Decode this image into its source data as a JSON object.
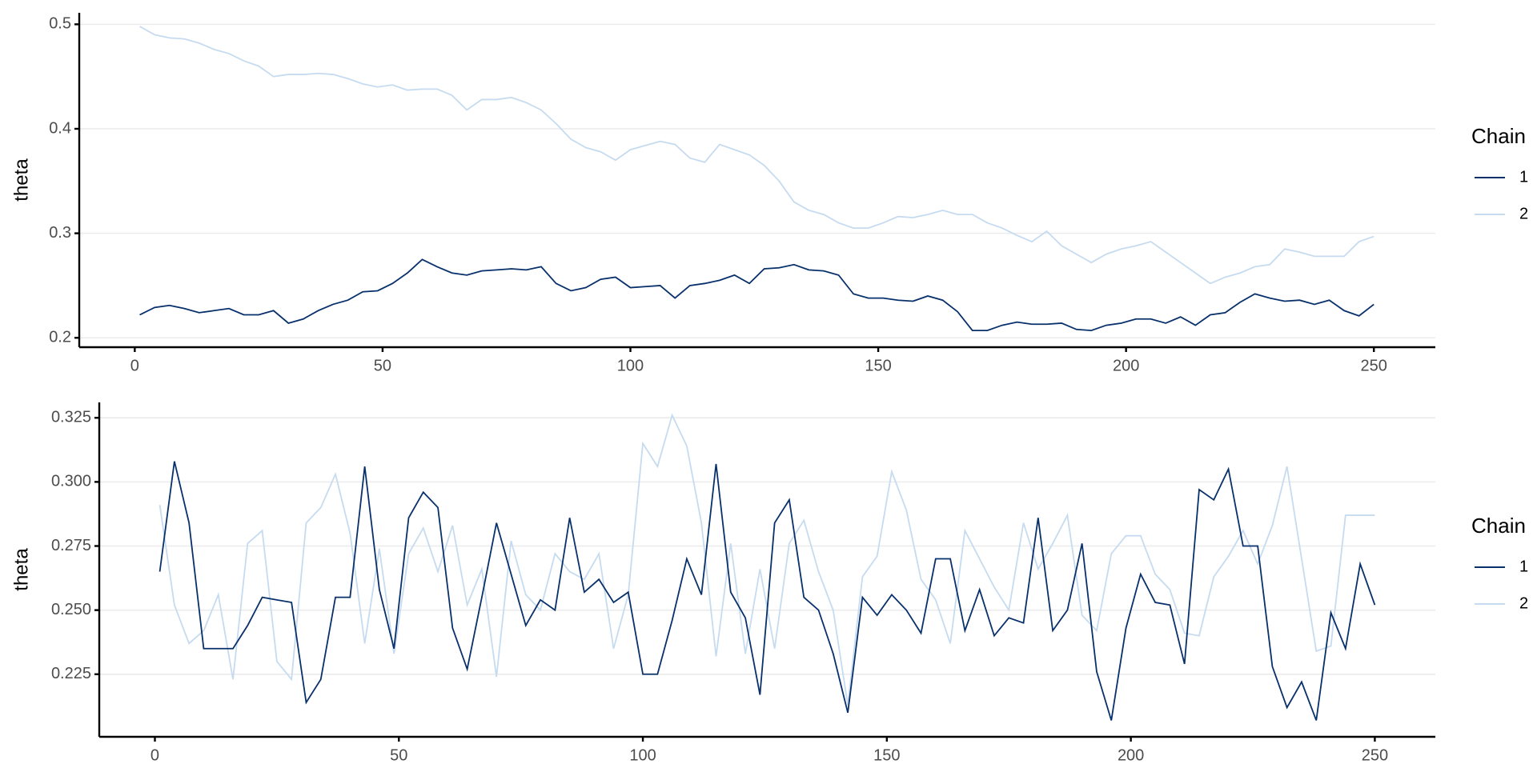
{
  "chart_data": [
    {
      "type": "line",
      "y_label": "theta",
      "legend_title": "Chain",
      "x": [
        1,
        4,
        7,
        10,
        13,
        16,
        19,
        22,
        25,
        28,
        31,
        34,
        37,
        40,
        43,
        46,
        49,
        52,
        55,
        58,
        61,
        64,
        67,
        70,
        73,
        76,
        79,
        82,
        85,
        88,
        91,
        94,
        97,
        100,
        103,
        106,
        109,
        112,
        115,
        118,
        121,
        124,
        127,
        130,
        133,
        136,
        139,
        142,
        145,
        148,
        151,
        154,
        157,
        160,
        163,
        166,
        169,
        172,
        175,
        178,
        181,
        184,
        187,
        190,
        193,
        196,
        199,
        202,
        205,
        208,
        211,
        214,
        217,
        220,
        223,
        226,
        229,
        232,
        235,
        238,
        241,
        244,
        247,
        250
      ],
      "series": [
        {
          "name": "1",
          "color": "#08306b",
          "values": [
            0.222,
            0.229,
            0.231,
            0.228,
            0.224,
            0.226,
            0.228,
            0.222,
            0.222,
            0.226,
            0.214,
            0.218,
            0.226,
            0.232,
            0.236,
            0.244,
            0.245,
            0.252,
            0.262,
            0.275,
            0.268,
            0.262,
            0.26,
            0.264,
            0.265,
            0.266,
            0.265,
            0.268,
            0.252,
            0.245,
            0.248,
            0.256,
            0.258,
            0.248,
            0.249,
            0.25,
            0.238,
            0.25,
            0.252,
            0.255,
            0.26,
            0.252,
            0.266,
            0.267,
            0.27,
            0.265,
            0.264,
            0.26,
            0.242,
            0.238,
            0.238,
            0.236,
            0.235,
            0.24,
            0.236,
            0.225,
            0.207,
            0.207,
            0.212,
            0.215,
            0.213,
            0.213,
            0.214,
            0.208,
            0.207,
            0.212,
            0.214,
            0.218,
            0.218,
            0.214,
            0.22,
            0.212,
            0.222,
            0.224,
            0.234,
            0.242,
            0.238,
            0.235,
            0.236,
            0.232,
            0.236,
            0.226,
            0.221,
            0.232
          ]
        },
        {
          "name": "2",
          "color": "#c6dbef",
          "values": [
            0.498,
            0.49,
            0.487,
            0.486,
            0.482,
            0.476,
            0.472,
            0.465,
            0.46,
            0.45,
            0.452,
            0.452,
            0.453,
            0.452,
            0.448,
            0.443,
            0.44,
            0.442,
            0.437,
            0.438,
            0.438,
            0.432,
            0.418,
            0.428,
            0.428,
            0.43,
            0.425,
            0.418,
            0.405,
            0.39,
            0.382,
            0.378,
            0.37,
            0.38,
            0.384,
            0.388,
            0.385,
            0.372,
            0.368,
            0.385,
            0.38,
            0.375,
            0.365,
            0.35,
            0.33,
            0.322,
            0.318,
            0.31,
            0.305,
            0.305,
            0.31,
            0.316,
            0.315,
            0.318,
            0.322,
            0.318,
            0.318,
            0.31,
            0.305,
            0.298,
            0.292,
            0.302,
            0.288,
            0.28,
            0.272,
            0.28,
            0.285,
            0.288,
            0.292,
            0.282,
            0.272,
            0.262,
            0.252,
            0.258,
            0.262,
            0.268,
            0.27,
            0.285,
            0.282,
            0.278,
            0.278,
            0.278,
            0.292,
            0.297
          ]
        }
      ],
      "xlim": [
        -11.2,
        262.4
      ],
      "xticks": [
        0,
        50,
        100,
        150,
        200,
        250
      ],
      "ylim": [
        0.191,
        0.511
      ],
      "yticks": [
        0.2,
        0.3,
        0.4,
        0.5
      ],
      "grid": true
    },
    {
      "type": "line",
      "y_label": "theta",
      "legend_title": "Chain",
      "x": [
        1,
        4,
        7,
        10,
        13,
        16,
        19,
        22,
        25,
        28,
        31,
        34,
        37,
        40,
        43,
        46,
        49,
        52,
        55,
        58,
        61,
        64,
        67,
        70,
        73,
        76,
        79,
        82,
        85,
        88,
        91,
        94,
        97,
        100,
        103,
        106,
        109,
        112,
        115,
        118,
        121,
        124,
        127,
        130,
        133,
        136,
        139,
        142,
        145,
        148,
        151,
        154,
        157,
        160,
        163,
        166,
        169,
        172,
        175,
        178,
        181,
        184,
        187,
        190,
        193,
        196,
        199,
        202,
        205,
        208,
        211,
        214,
        217,
        220,
        223,
        226,
        229,
        232,
        235,
        238,
        241,
        244,
        247,
        250
      ],
      "series": [
        {
          "name": "1",
          "color": "#08306b",
          "values": [
            0.265,
            0.308,
            0.284,
            0.235,
            0.235,
            0.235,
            0.244,
            0.255,
            0.254,
            0.253,
            0.214,
            0.223,
            0.255,
            0.255,
            0.306,
            0.258,
            0.235,
            0.286,
            0.296,
            0.29,
            0.243,
            0.227,
            0.255,
            0.284,
            0.264,
            0.244,
            0.254,
            0.25,
            0.286,
            0.257,
            0.262,
            0.253,
            0.257,
            0.225,
            0.225,
            0.246,
            0.27,
            0.256,
            0.307,
            0.257,
            0.247,
            0.217,
            0.284,
            0.293,
            0.255,
            0.25,
            0.233,
            0.21,
            0.255,
            0.248,
            0.256,
            0.25,
            0.241,
            0.27,
            0.27,
            0.242,
            0.258,
            0.24,
            0.247,
            0.245,
            0.286,
            0.242,
            0.25,
            0.276,
            0.226,
            0.207,
            0.243,
            0.264,
            0.253,
            0.252,
            0.229,
            0.297,
            0.293,
            0.305,
            0.275,
            0.275,
            0.228,
            0.212,
            0.222,
            0.207,
            0.249,
            0.235,
            0.268,
            0.252
          ]
        },
        {
          "name": "2",
          "color": "#c6dbef",
          "values": [
            0.291,
            0.252,
            0.237,
            0.242,
            0.256,
            0.223,
            0.276,
            0.281,
            0.23,
            0.223,
            0.284,
            0.29,
            0.303,
            0.28,
            0.237,
            0.274,
            0.233,
            0.272,
            0.282,
            0.265,
            0.283,
            0.252,
            0.266,
            0.224,
            0.277,
            0.256,
            0.25,
            0.272,
            0.265,
            0.262,
            0.272,
            0.235,
            0.256,
            0.315,
            0.306,
            0.326,
            0.314,
            0.284,
            0.232,
            0.276,
            0.233,
            0.266,
            0.235,
            0.276,
            0.285,
            0.265,
            0.25,
            0.213,
            0.263,
            0.271,
            0.304,
            0.289,
            0.262,
            0.254,
            0.237,
            0.281,
            0.27,
            0.259,
            0.25,
            0.284,
            0.266,
            0.276,
            0.287,
            0.248,
            0.242,
            0.272,
            0.279,
            0.279,
            0.264,
            0.258,
            0.241,
            0.24,
            0.263,
            0.271,
            0.281,
            0.268,
            0.283,
            0.306,
            0.27,
            0.234,
            0.236,
            0.287,
            0.287,
            0.287
          ]
        }
      ],
      "xlim": [
        -11.4,
        262.4
      ],
      "xticks": [
        0,
        50,
        100,
        150,
        200,
        250
      ],
      "ylim": [
        0.2006,
        0.331
      ],
      "yticks": [
        0.225,
        {
          "value": 0.25,
          "label": "0.250"
        },
        0.275,
        {
          "value": 0.3,
          "label": "0.300"
        },
        0.325
      ],
      "grid": true
    }
  ]
}
